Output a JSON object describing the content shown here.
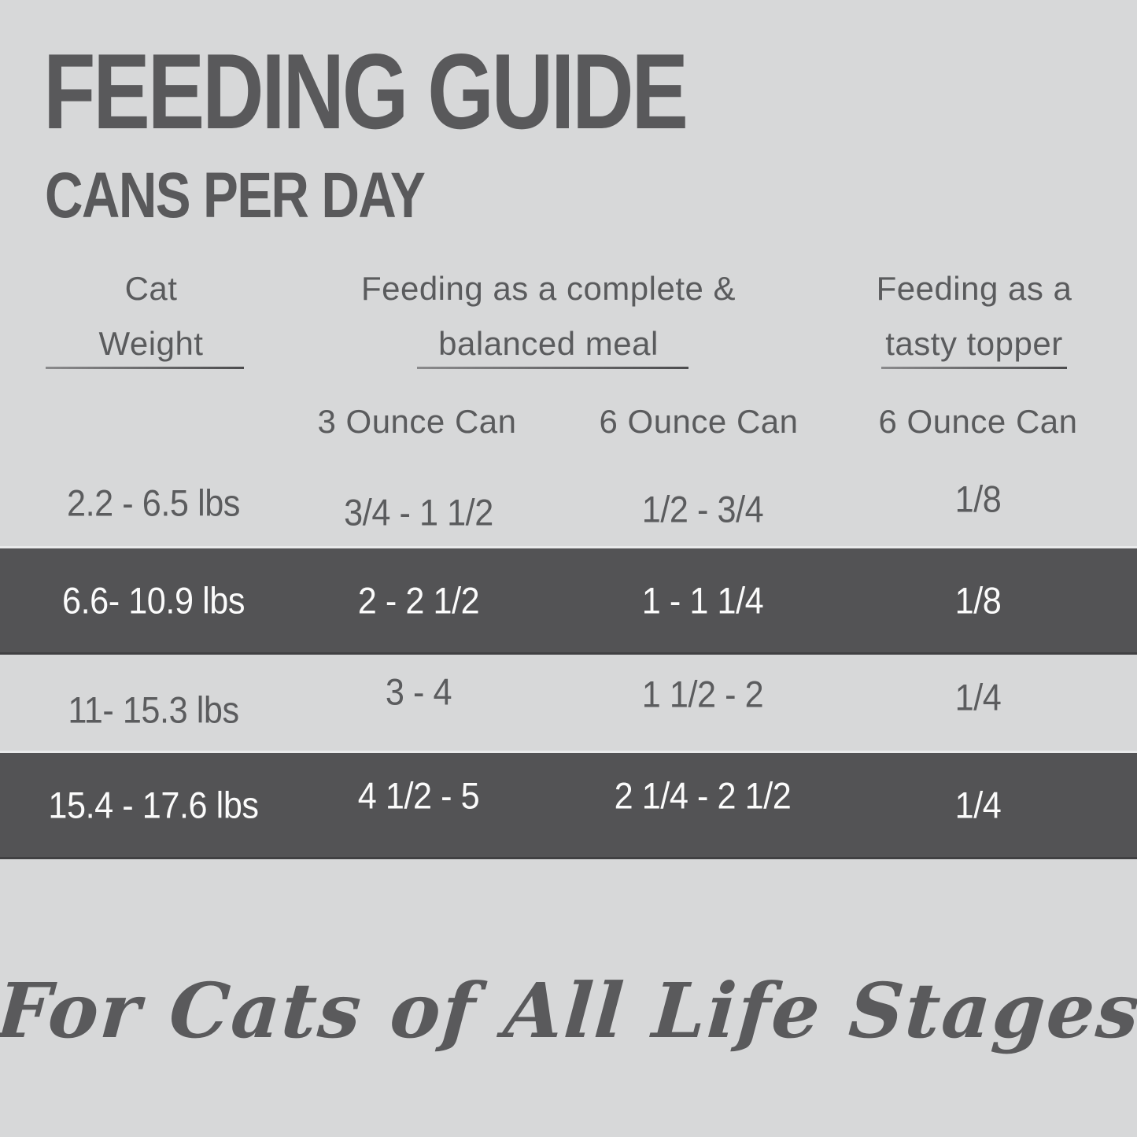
{
  "header": {
    "title": "FEEDING GUIDE",
    "subtitle": "CANS PER DAY"
  },
  "table": {
    "groups": [
      {
        "lines": [
          "Cat",
          "Weight"
        ]
      },
      {
        "lines": [
          "Feeding as a complete &",
          "balanced meal"
        ]
      },
      {
        "lines": [
          "Feeding as a",
          "tasty topper"
        ]
      }
    ],
    "subheaders": [
      "3 Ounce Can",
      "6 Ounce Can",
      "6 Ounce Can"
    ],
    "rows": [
      {
        "weight": "2.2 - 6.5 lbs",
        "can3": "3/4 - 1 1/2",
        "can6_meal": "1/2 - 3/4",
        "can6_topper": "1/8",
        "highlight": false
      },
      {
        "weight": "6.6- 10.9 lbs",
        "can3": "2 - 2 1/2",
        "can6_meal": "1 - 1 1/4",
        "can6_topper": "1/8",
        "highlight": true
      },
      {
        "weight": "11- 15.3 lbs",
        "can3": "3 - 4",
        "can6_meal": "1 1/2 - 2",
        "can6_topper": "1/4",
        "highlight": false
      },
      {
        "weight": "15.4 - 17.6 lbs",
        "can3": "4 1/2 - 5",
        "can6_meal": "2 1/4 - 2 1/2",
        "can6_topper": "1/4",
        "highlight": true
      }
    ]
  },
  "footer": {
    "tagline": "For Cats of All Life Stages"
  },
  "colors": {
    "background": "#d7d8d9",
    "highlight_row": "#535355",
    "text_dark": "#59595b",
    "text_on_dark": "#fbfbfb"
  }
}
